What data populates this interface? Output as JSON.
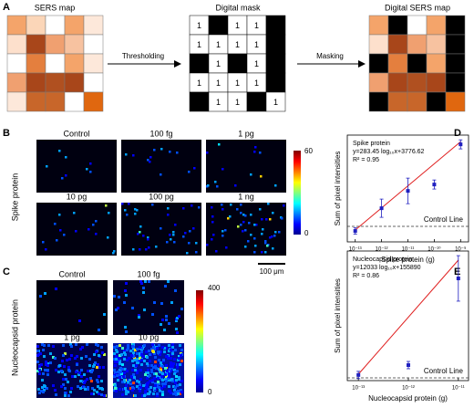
{
  "panel_a": {
    "label": "A",
    "sers_map": {
      "title": "SERS map",
      "colors": [
        [
          "#f4a46a",
          "#fbd6b8",
          "#ffffff",
          "#f4a46a",
          "#fde8da"
        ],
        [
          "#fde0cc",
          "#a8461a",
          "#f0a070",
          "#f7c2a0",
          "#ffffff"
        ],
        [
          "#ffffff",
          "#e47f3e",
          "#ffffff",
          "#f4a46a",
          "#fde8da"
        ],
        [
          "#f0a070",
          "#a8461a",
          "#b05020",
          "#a8461a",
          "#ffffff"
        ],
        [
          "#fde8da",
          "#c8662a",
          "#c8662a",
          "#ffffff",
          "#e0670f"
        ]
      ]
    },
    "thresholding": "Thresholding",
    "digital_mask": {
      "title": "Digital mask",
      "cells": [
        [
          1,
          0,
          1,
          1,
          0
        ],
        [
          1,
          1,
          1,
          1,
          0
        ],
        [
          0,
          1,
          0,
          1,
          0
        ],
        [
          1,
          1,
          1,
          1,
          0
        ],
        [
          0,
          1,
          1,
          0,
          1
        ]
      ]
    },
    "masking": "Masking",
    "digital_sers_map": {
      "title": "Digital SERS map"
    }
  },
  "panel_b": {
    "label": "B",
    "row_label": "Spike protein",
    "images": [
      "Control",
      "100 fg",
      "1 pg",
      "10 pg",
      "100 pg",
      "1 ng"
    ],
    "colorbar": [
      0,
      60
    ],
    "scale_bar": "100 μm"
  },
  "panel_c": {
    "label": "C",
    "row_label": "Nucleocapsid protein",
    "images": [
      "Control",
      "100 fg",
      "1 pg",
      "10 pg"
    ],
    "colorbar": [
      0,
      400
    ]
  },
  "chart_data": [
    {
      "type": "scatter",
      "panel_label": "D",
      "x_label": "Spike protein (g)",
      "y_label": "Sum of pixel intensities",
      "annotation": [
        "Spike protein",
        "y=283.45 log₁₀x+3776.62",
        "R² = 0.95"
      ],
      "log_x": true,
      "xlim": [
        5e-14,
        2e-09
      ],
      "ylim": [
        -60,
        1310
      ],
      "xticks": [
        {
          "value": 1e-13,
          "label": "10⁻¹³"
        },
        {
          "value": 1e-12,
          "label": "10⁻¹²"
        },
        {
          "value": 1e-11,
          "label": "10⁻¹¹"
        },
        {
          "value": 1e-10,
          "label": "10⁻¹⁰"
        },
        {
          "value": 1e-09,
          "label": "10⁻⁹"
        }
      ],
      "series": [
        {
          "color": "#2020c0",
          "x": [
            1e-13,
            1e-12,
            1e-11,
            1e-10,
            1e-09
          ],
          "values": [
            80,
            372,
            594,
            676,
            1191
          ],
          "errors": [
            40,
            117,
            164,
            58,
            58
          ]
        }
      ],
      "fit": {
        "color": "#e02020",
        "slope": 283.45,
        "intercept": 3776.62
      },
      "control_line": {
        "label": "Control Line",
        "value": 139
      }
    },
    {
      "type": "scatter",
      "panel_label": "E",
      "x_label": "Nucleocapsid protein (g)",
      "y_label": "Sum of pixel intensities",
      "annotation": [
        "Nucleocapsid protein",
        "y=12033 log₁₀x+155890",
        "R² = 0.86"
      ],
      "log_x": true,
      "xlim": [
        6e-14,
        1.6e-11
      ],
      "ylim": [
        -1887,
        25452
      ],
      "xticks": [
        {
          "value": 1e-13,
          "label": "10⁻¹³"
        },
        {
          "value": 1e-12,
          "label": "10⁻¹²"
        },
        {
          "value": 1e-11,
          "label": "10⁻¹¹"
        }
      ],
      "series": [
        {
          "color": "#2020c0",
          "x": [
            1e-13,
            1e-12,
            1e-11
          ],
          "values": [
            -700,
            1386,
            19673
          ],
          "errors": [
            770,
            770,
            4800
          ]
        }
      ],
      "fit": {
        "color": "#e02020",
        "slope": 12033,
        "intercept": 155890
      },
      "control_line": {
        "label": "Control Line",
        "value": -1309
      }
    }
  ]
}
